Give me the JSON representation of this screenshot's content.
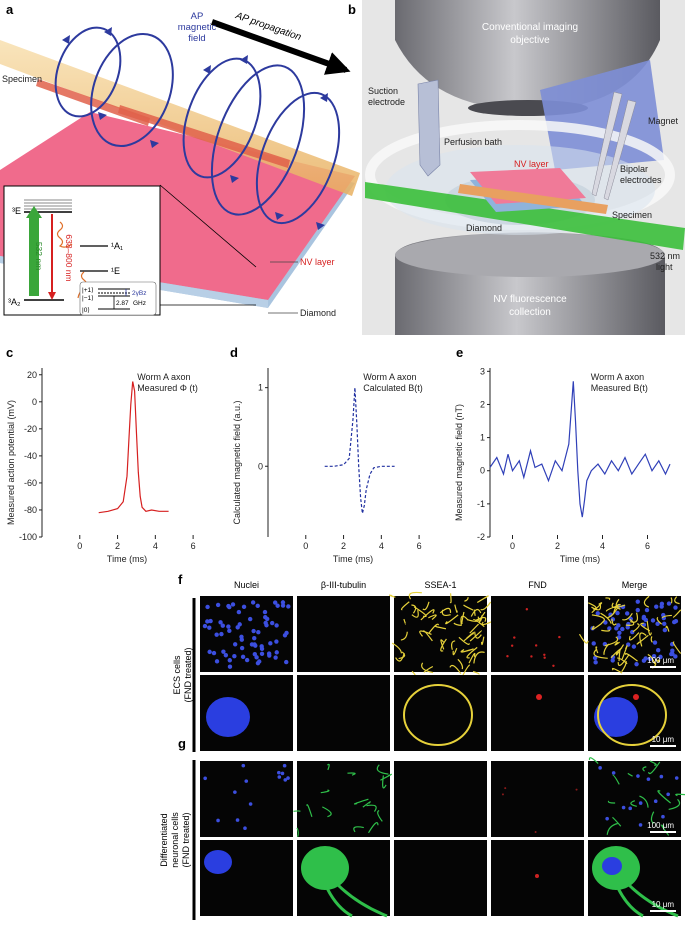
{
  "panel_a": {
    "letter": "a",
    "ap_field": [
      "AP",
      "magnetic",
      "field"
    ],
    "ap_propagation": "AP propagation",
    "specimen": "Specimen",
    "nv_layer": "NV layer",
    "diamond": "Diamond",
    "inset": {
      "level_3E": "³E",
      "level_3A2": "³A₂",
      "level_1A1": "¹A₁",
      "level_1E": "¹E",
      "green_label": "532 nm",
      "red_label": "638–800 nm",
      "ket_p1": "|+1⟩",
      "ket_m1": "|−1⟩",
      "ket_0": "|0⟩",
      "split": "2γBz",
      "zfs": "2.87",
      "zfs_unit": "GHz"
    }
  },
  "panel_b": {
    "letter": "b",
    "objective": [
      "Conventional imaging",
      "objective"
    ],
    "suction": [
      "Suction",
      "electrode"
    ],
    "magnet": "Magnet",
    "perfusion": "Perfusion bath",
    "nv_layer": "NV layer",
    "bipolar": [
      "Bipolar",
      "electrodes"
    ],
    "specimen": "Specimen",
    "diamond": "Diamond",
    "light": [
      "532 nm",
      "light"
    ],
    "collection": [
      "NV fluorescence",
      "collection"
    ]
  },
  "chart_data": [
    {
      "panel": "c",
      "type": "line",
      "annotation": [
        "Worm A axon",
        "Measured Φ (t)"
      ],
      "xlabel": "Time (ms)",
      "ylabel": "Measured action potential (mV)",
      "xlim": [
        -2,
        7
      ],
      "ylim": [
        -100,
        25
      ],
      "xticks": [
        0,
        2,
        4,
        6
      ],
      "yticks": [
        -100,
        -80,
        -60,
        -40,
        -20,
        0,
        20
      ],
      "color": "#d62020",
      "x": [
        1.0,
        1.5,
        2.0,
        2.3,
        2.5,
        2.6,
        2.7,
        2.8,
        2.9,
        3.0,
        3.1,
        3.2,
        3.3,
        3.5,
        3.8,
        4.2,
        4.7
      ],
      "y": [
        -82,
        -81,
        -79,
        -74,
        -55,
        -28,
        -2,
        15,
        8,
        -22,
        -52,
        -70,
        -78,
        -81,
        -80,
        -81,
        -81
      ]
    },
    {
      "panel": "d",
      "type": "line",
      "annotation": [
        "Worm A axon",
        "Calculated B(t)"
      ],
      "xlabel": "Time (ms)",
      "ylabel": "Calculated magnetic field (a.u.)",
      "xlim": [
        -2,
        7
      ],
      "ylim": [
        -0.9,
        1.25
      ],
      "xticks": [
        0,
        2,
        4,
        6
      ],
      "yticks": [
        0,
        1
      ],
      "color": "#2030a0",
      "dashed": true,
      "x": [
        1.0,
        1.5,
        2.0,
        2.3,
        2.5,
        2.6,
        2.7,
        2.8,
        2.9,
        3.0,
        3.1,
        3.2,
        3.4,
        3.6,
        4.0,
        4.7
      ],
      "y": [
        0.0,
        0.0,
        0.02,
        0.1,
        0.6,
        1.0,
        0.55,
        0.0,
        -0.4,
        -0.6,
        -0.5,
        -0.3,
        -0.1,
        -0.02,
        0.0,
        0.0
      ]
    },
    {
      "panel": "e",
      "type": "line",
      "annotation": [
        "Worm A axon",
        "Measured B(t)"
      ],
      "xlabel": "Time (ms)",
      "ylabel": "Measured magnetic field (nT)",
      "xlim": [
        -1,
        7
      ],
      "ylim": [
        -2,
        3.1
      ],
      "xticks": [
        0,
        2,
        4,
        6
      ],
      "yticks": [
        -2,
        -1,
        0,
        1,
        2,
        3
      ],
      "color": "#3040b8",
      "x": [
        -1.0,
        -0.7,
        -0.4,
        -0.2,
        0.0,
        0.3,
        0.5,
        0.8,
        1.0,
        1.3,
        1.6,
        1.9,
        2.2,
        2.5,
        2.7,
        2.8,
        2.9,
        3.0,
        3.1,
        3.2,
        3.3,
        3.5,
        3.8,
        4.1,
        4.4,
        4.7,
        5.0,
        5.3,
        5.6,
        5.9,
        6.2,
        6.5,
        6.8,
        7.0
      ],
      "y": [
        0.1,
        0.4,
        -0.1,
        0.5,
        0.0,
        0.3,
        -0.2,
        0.6,
        0.1,
        0.2,
        -0.3,
        0.3,
        0.0,
        0.8,
        2.7,
        1.5,
        0.0,
        -1.0,
        -1.4,
        -0.9,
        -0.3,
        0.0,
        0.2,
        -0.1,
        0.3,
        0.0,
        0.4,
        -0.1,
        0.2,
        0.5,
        0.0,
        0.3,
        -0.1,
        0.2
      ]
    }
  ],
  "micro": {
    "letter_f": "f",
    "letter_g": "g",
    "columns": [
      "Nuclei",
      "β-III-tubulin",
      "SSEA-1",
      "FND",
      "Merge"
    ],
    "row_f": [
      "ECS cells",
      "(FND treated)"
    ],
    "row_g": [
      "Differentiated",
      "neuronal cells",
      "(FND treated)"
    ],
    "scale_100": "100 μm",
    "scale_10": "10 μm"
  }
}
